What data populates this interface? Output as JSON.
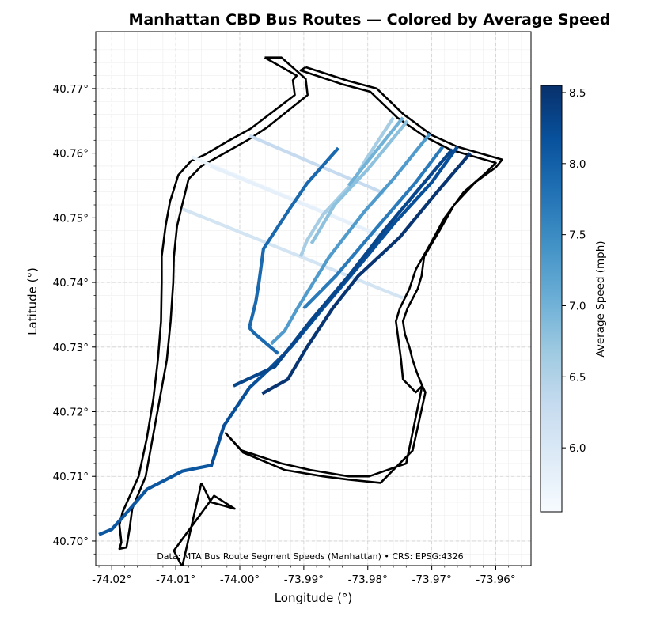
{
  "title": "Manhattan CBD Bus Routes — Colored by Average Speed",
  "x_axis": {
    "label": "Longitude (°)",
    "ticks": [
      "-74.02°",
      "-74.01°",
      "-74.00°",
      "-73.99°",
      "-73.98°",
      "-73.97°",
      "-73.96°"
    ],
    "tick_values": [
      -74.02,
      -74.01,
      -74.0,
      -73.99,
      -73.98,
      -73.97,
      -73.96
    ],
    "range": [
      -74.0225,
      -73.9545
    ]
  },
  "y_axis": {
    "label": "Latitude (°)",
    "ticks": [
      "40.70°",
      "40.71°",
      "40.72°",
      "40.73°",
      "40.74°",
      "40.75°",
      "40.76°",
      "40.77°"
    ],
    "tick_values": [
      40.7,
      40.71,
      40.72,
      40.73,
      40.74,
      40.75,
      40.76,
      40.77
    ],
    "range": [
      40.6962,
      40.7788
    ]
  },
  "annotation": "Data: MTA Bus Route Segment Speeds (Manhattan) • CRS: EPSG:4326",
  "colorbar": {
    "label": "Average Speed (mph)",
    "ticks": [
      "6.0",
      "6.5",
      "7.0",
      "7.5",
      "8.0",
      "8.5"
    ],
    "tick_values": [
      6.0,
      6.5,
      7.0,
      7.5,
      8.0,
      8.5
    ],
    "range": [
      5.55,
      8.55
    ],
    "colormap": "Blues",
    "colors": [
      "#f7fbff",
      "#deebf7",
      "#c6dbef",
      "#9ecae1",
      "#6baed6",
      "#4292c6",
      "#2171b5",
      "#08519c",
      "#08306b"
    ]
  },
  "chart_data": {
    "type": "map",
    "title": "Manhattan CBD Bus Routes — Colored by Average Speed",
    "xlabel": "Longitude (°)",
    "ylabel": "Latitude (°)",
    "xlim": [
      -74.0225,
      -73.9545
    ],
    "ylim": [
      40.6962,
      40.7788
    ],
    "grid": true,
    "crs": "EPSG:4326",
    "color_by": "Average Speed (mph)",
    "boundaries": [
      {
        "coords": [
          [
            -73.9961,
            40.7748
          ],
          [
            -73.9911,
            40.772
          ],
          [
            -73.9917,
            40.7713
          ],
          [
            -73.9914,
            40.769
          ],
          [
            -73.9983,
            40.7638
          ],
          [
            -74.0016,
            40.762
          ],
          [
            -74.0054,
            40.7598
          ],
          [
            -74.0076,
            40.7588
          ],
          [
            -74.0096,
            40.7566
          ],
          [
            -74.0109,
            40.7525
          ],
          [
            -74.0116,
            40.7487
          ],
          [
            -74.0122,
            40.744
          ],
          [
            -74.0122,
            40.74
          ],
          [
            -74.0123,
            40.734
          ],
          [
            -74.0128,
            40.728
          ],
          [
            -74.0135,
            40.722
          ],
          [
            -74.0145,
            40.716
          ],
          [
            -74.0158,
            40.71
          ],
          [
            -74.0183,
            40.7045
          ],
          [
            -74.0188,
            40.7025
          ],
          [
            -74.0185,
            40.6998
          ],
          [
            -74.0188,
            40.6988
          ],
          [
            -74.0177,
            40.699
          ],
          [
            -74.0172,
            40.702
          ],
          [
            -74.0168,
            40.705
          ],
          [
            -74.0147,
            40.71
          ],
          [
            -74.0136,
            40.716
          ],
          [
            -74.0125,
            40.722
          ],
          [
            -74.0114,
            40.728
          ],
          [
            -74.0108,
            40.734
          ],
          [
            -74.0104,
            40.74
          ],
          [
            -74.0103,
            40.744
          ],
          [
            -74.0098,
            40.7487
          ],
          [
            -74.009,
            40.752
          ],
          [
            -74.008,
            40.756
          ],
          [
            -74.006,
            40.758
          ],
          [
            -74.0024,
            40.76
          ],
          [
            -73.9988,
            40.762
          ],
          [
            -73.9957,
            40.764
          ],
          [
            -73.9894,
            40.769
          ],
          [
            -73.9897,
            40.7715
          ],
          [
            -73.9935,
            40.7748
          ],
          [
            -73.9961,
            40.7748
          ]
        ]
      },
      {
        "coords": [
          [
            -73.9897,
            40.7733
          ],
          [
            -73.9831,
            40.7712
          ],
          [
            -73.9786,
            40.77
          ],
          [
            -73.9744,
            40.766
          ],
          [
            -73.97,
            40.7628
          ],
          [
            -73.966,
            40.761
          ],
          [
            -73.959,
            40.759
          ],
          [
            -73.96,
            40.7578
          ],
          [
            -73.9632,
            40.7555
          ],
          [
            -73.9665,
            40.752
          ],
          [
            -73.9688,
            40.748
          ],
          [
            -73.9712,
            40.744
          ],
          [
            -73.9716,
            40.741
          ],
          [
            -73.9722,
            40.739
          ],
          [
            -73.9738,
            40.736
          ],
          [
            -73.9745,
            40.734
          ],
          [
            -73.9742,
            40.732
          ],
          [
            -73.9735,
            40.73
          ],
          [
            -73.973,
            40.728
          ],
          [
            -73.9723,
            40.726
          ],
          [
            -73.9715,
            40.724
          ],
          [
            -73.9725,
            40.723
          ],
          [
            -73.9745,
            40.725
          ],
          [
            -73.9748,
            40.728
          ],
          [
            -73.9752,
            40.731
          ],
          [
            -73.9756,
            40.734
          ],
          [
            -73.975,
            40.736
          ],
          [
            -73.9735,
            40.739
          ],
          [
            -73.9725,
            40.742
          ],
          [
            -73.9702,
            40.746
          ],
          [
            -73.968,
            40.75
          ],
          [
            -73.965,
            40.754
          ],
          [
            -73.9615,
            40.757
          ],
          [
            -73.96,
            40.7585
          ],
          [
            -73.967,
            40.7605
          ],
          [
            -73.971,
            40.7625
          ],
          [
            -73.9754,
            40.7655
          ],
          [
            -73.9796,
            40.7695
          ],
          [
            -73.9841,
            40.7707
          ],
          [
            -73.9905,
            40.7728
          ],
          [
            -73.9897,
            40.7733
          ]
        ]
      },
      {
        "coords": [
          [
            -74.0023,
            40.7168
          ],
          [
            -73.9995,
            40.7137
          ],
          [
            -73.993,
            40.711
          ],
          [
            -73.987,
            40.71
          ],
          [
            -73.983,
            40.7095
          ],
          [
            -73.978,
            40.709
          ],
          [
            -73.973,
            40.714
          ],
          [
            -73.971,
            40.723
          ],
          [
            -73.9715,
            40.724
          ],
          [
            -73.974,
            40.712
          ],
          [
            -73.9798,
            40.71
          ],
          [
            -73.983,
            40.71
          ],
          [
            -73.989,
            40.711
          ],
          [
            -73.9935,
            40.712
          ],
          [
            -73.9997,
            40.714
          ],
          [
            -74.0023,
            40.7168
          ]
        ]
      },
      {
        "coords": [
          [
            -74.006,
            40.709
          ],
          [
            -74.0045,
            40.706
          ],
          [
            -74.0008,
            40.705
          ],
          [
            -74.004,
            40.707
          ],
          [
            -74.0103,
            40.6985
          ],
          [
            -74.009,
            40.696
          ],
          [
            -74.006,
            40.709
          ]
        ]
      }
    ],
    "routes": [
      {
        "name": "",
        "speed": 5.7,
        "coords": [
          [
            -74.0075,
            40.7594
          ],
          [
            -73.98,
            40.7481
          ],
          [
            -73.9785,
            40.7476
          ]
        ]
      },
      {
        "name": "",
        "speed": 5.8,
        "coords": [
          [
            -74.0046,
            40.758
          ],
          [
            -73.9775,
            40.747
          ]
        ]
      },
      {
        "name": "",
        "speed": 6.1,
        "coords": [
          [
            -74.009,
            40.7514
          ],
          [
            -73.9755,
            40.738
          ],
          [
            -73.9745,
            40.7376
          ]
        ]
      },
      {
        "name": "",
        "speed": 6.3,
        "coords": [
          [
            -73.9985,
            40.7627
          ],
          [
            -73.9875,
            40.758
          ],
          [
            -73.981,
            40.7553
          ],
          [
            -73.9775,
            40.7538
          ]
        ]
      },
      {
        "name": "",
        "speed": 6.6,
        "coords": [
          [
            -73.976,
            40.7655
          ],
          [
            -73.9803,
            40.759
          ],
          [
            -73.9823,
            40.7555
          ],
          [
            -73.987,
            40.7505
          ],
          [
            -73.9895,
            40.7465
          ],
          [
            -73.9905,
            40.744
          ]
        ]
      },
      {
        "name": "",
        "speed": 6.8,
        "coords": [
          [
            -73.9738,
            40.765
          ],
          [
            -73.98,
            40.7575
          ],
          [
            -73.9852,
            40.752
          ],
          [
            -73.9888,
            40.746
          ]
        ]
      },
      {
        "name": "",
        "speed": 7.3,
        "coords": [
          [
            -73.9703,
            40.763
          ],
          [
            -73.976,
            40.756
          ],
          [
            -73.9805,
            40.751
          ],
          [
            -73.986,
            40.744
          ],
          [
            -73.991,
            40.736
          ],
          [
            -73.993,
            40.7325
          ],
          [
            -73.9951,
            40.7305
          ]
        ]
      },
      {
        "name": "",
        "speed": 7.0,
        "coords": [
          [
            -73.9745,
            40.7655
          ],
          [
            -73.9798,
            40.759
          ],
          [
            -73.983,
            40.755
          ]
        ]
      },
      {
        "name": "",
        "speed": 7.7,
        "coords": [
          [
            -73.9683,
            40.761
          ],
          [
            -73.9725,
            40.7555
          ],
          [
            -73.979,
            40.748
          ],
          [
            -73.985,
            40.741
          ],
          [
            -73.99,
            40.736
          ]
        ]
      },
      {
        "name": "",
        "speed": 7.9,
        "coords": [
          [
            -73.9846,
            40.7608
          ],
          [
            -73.9895,
            40.7553
          ],
          [
            -73.992,
            40.7517
          ],
          [
            -73.9963,
            40.7452
          ],
          [
            -73.997,
            40.74
          ],
          [
            -73.9975,
            40.737
          ],
          [
            -73.9985,
            40.733
          ],
          [
            -73.9978,
            40.7322
          ],
          [
            -73.994,
            40.729
          ]
        ]
      },
      {
        "name": "",
        "speed": 8.2,
        "coords": [
          [
            -73.966,
            40.761
          ],
          [
            -73.97,
            40.7555
          ],
          [
            -73.976,
            40.749
          ],
          [
            -73.981,
            40.743
          ],
          [
            -73.987,
            40.736
          ],
          [
            -73.992,
            40.73
          ],
          [
            -73.9955,
            40.7265
          ],
          [
            -73.9985,
            40.7237
          ],
          [
            -74.0025,
            40.7178
          ],
          [
            -74.004,
            40.713
          ],
          [
            -74.0045,
            40.7115
          ]
        ]
      },
      {
        "name": "",
        "speed": 8.1,
        "coords": [
          [
            -74.0045,
            40.7117
          ],
          [
            -74.009,
            40.7108
          ],
          [
            -74.0145,
            40.708
          ],
          [
            -74.018,
            40.704
          ],
          [
            -74.02,
            40.7018
          ],
          [
            -74.022,
            40.701
          ]
        ]
      },
      {
        "name": "",
        "speed": 8.3,
        "coords": [
          [
            -73.9668,
            40.7606
          ],
          [
            -73.972,
            40.7545
          ],
          [
            -73.9775,
            40.748
          ],
          [
            -73.983,
            40.741
          ],
          [
            -73.989,
            40.734
          ],
          [
            -73.9945,
            40.727
          ],
          [
            -74.001,
            40.724
          ]
        ]
      },
      {
        "name": "",
        "speed": 8.5,
        "coords": [
          [
            -73.964,
            40.76
          ],
          [
            -73.9696,
            40.7535
          ],
          [
            -73.975,
            40.747
          ],
          [
            -73.9815,
            40.741
          ],
          [
            -73.9855,
            40.736
          ],
          [
            -73.9895,
            40.73
          ],
          [
            -73.9925,
            40.725
          ],
          [
            -73.9965,
            40.7228
          ]
        ]
      }
    ]
  }
}
